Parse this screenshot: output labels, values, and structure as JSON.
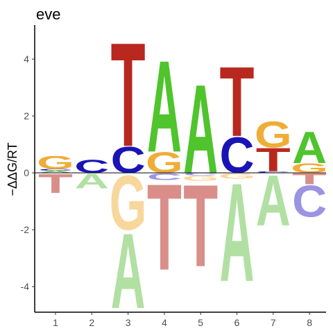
{
  "chart_data": {
    "type": "sequence-logo",
    "title": "eve",
    "ylabel": "−ΔΔG/RT",
    "xlabel": "",
    "ylim": [
      -4.9,
      5.2
    ],
    "yticks": [
      -4,
      -2,
      0,
      2,
      4
    ],
    "positions": [
      1,
      2,
      3,
      4,
      5,
      6,
      7,
      8
    ],
    "colors": {
      "A": "#4fc42c",
      "C": "#1a14b5",
      "G": "#efad37",
      "T": "#b9281e",
      "A_neg": "#b1e0a2",
      "C_neg": "#9b94e3",
      "G_neg": "#f8d79c",
      "T_neg": "#d98e89"
    },
    "stacks": [
      {
        "pos": 1,
        "positive": [
          [
            "A",
            0.08
          ],
          [
            "C",
            0.06
          ],
          [
            "G",
            0.48
          ]
        ],
        "negative": [
          [
            "T",
            0.7
          ]
        ]
      },
      {
        "pos": 2,
        "positive": [
          [
            "C",
            0.48
          ]
        ],
        "negative": [
          [
            "A",
            0.55
          ]
        ]
      },
      {
        "pos": 3,
        "positive": [
          [
            "C",
            0.95
          ],
          [
            "T",
            3.8
          ]
        ],
        "negative": [
          [
            "G",
            2.0
          ],
          [
            "A",
            2.75
          ]
        ]
      },
      {
        "pos": 4,
        "positive": [
          [
            "G",
            0.75
          ],
          [
            "A",
            3.35
          ]
        ],
        "negative": [
          [
            "C",
            0.25
          ],
          [
            "T",
            3.15
          ]
        ]
      },
      {
        "pos": 5,
        "positive": [
          [
            "A",
            3.25
          ]
        ],
        "negative": [
          [
            "C",
            0.1
          ],
          [
            "G",
            0.18
          ],
          [
            "T",
            3.0
          ]
        ]
      },
      {
        "pos": 6,
        "positive": [
          [
            "C",
            1.3
          ],
          [
            "T",
            2.55
          ]
        ],
        "negative": [
          [
            "G",
            0.2
          ],
          [
            "A",
            3.6
          ]
        ]
      },
      {
        "pos": 7,
        "positive": [
          [
            "C",
            0.05
          ],
          [
            "T",
            0.85
          ],
          [
            "G",
            0.95
          ]
        ],
        "negative": [
          [
            "A",
            1.85
          ]
        ]
      },
      {
        "pos": 8,
        "positive": [
          [
            "G",
            0.35
          ],
          [
            "A",
            1.15
          ]
        ],
        "negative": [
          [
            "T",
            0.4
          ],
          [
            "C",
            1.15
          ]
        ]
      }
    ]
  }
}
